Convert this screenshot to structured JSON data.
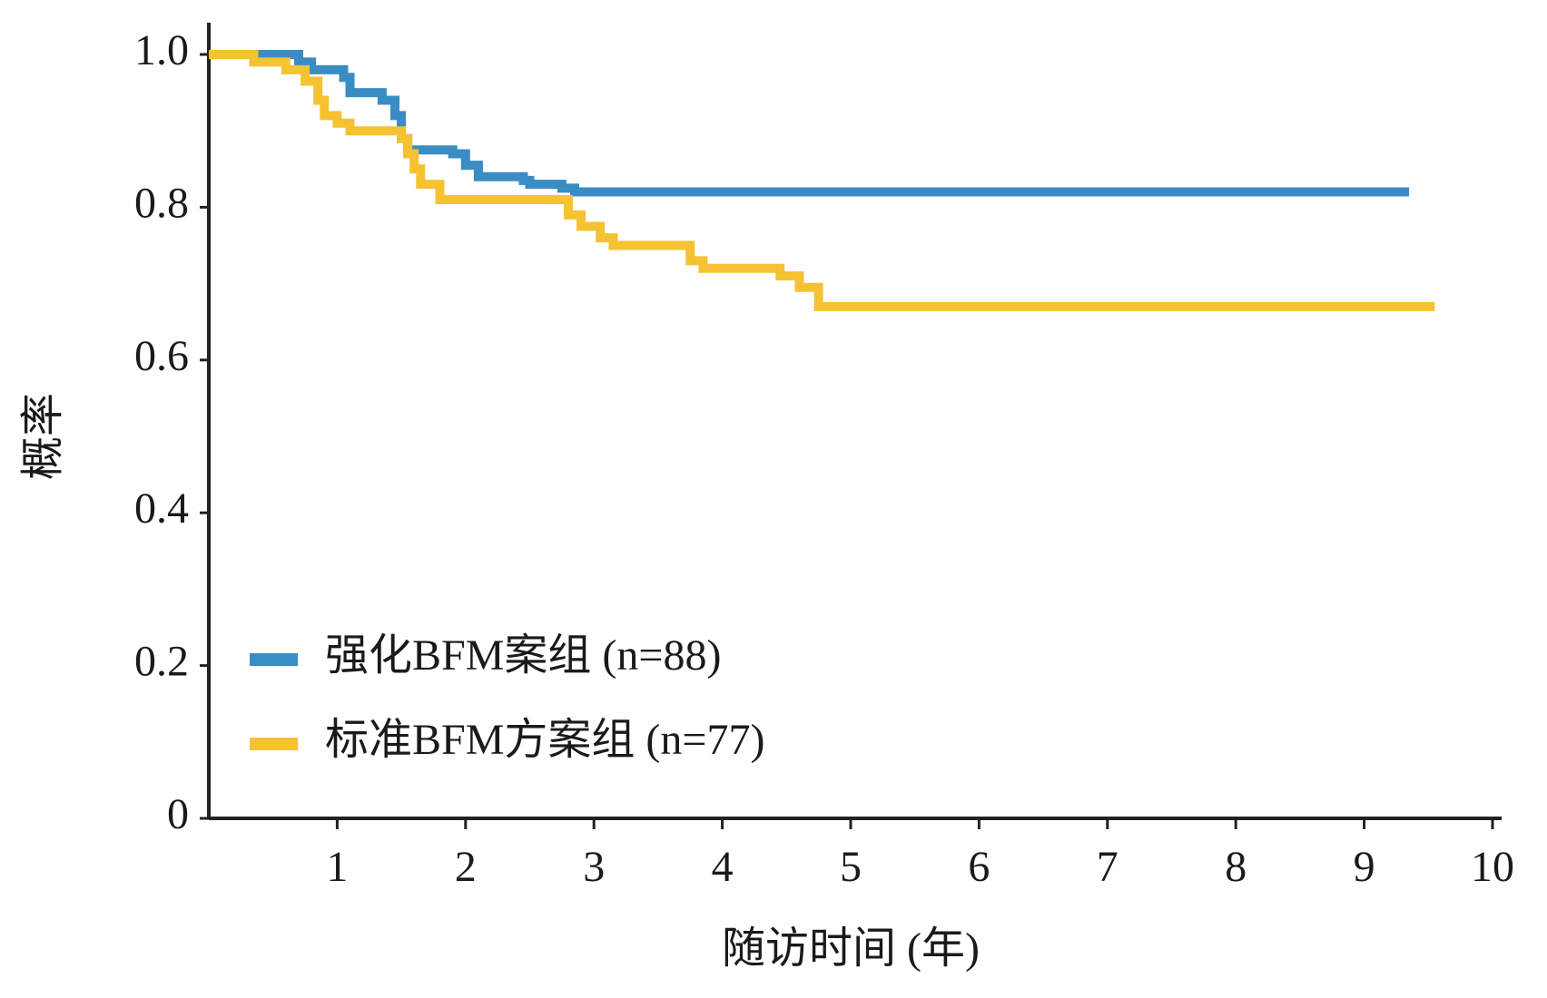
{
  "chart_data": {
    "type": "step",
    "x_label": "随访时间 (年)",
    "y_label": "概率",
    "xlim": [
      0,
      10
    ],
    "ylim": [
      0,
      1
    ],
    "xticks": [
      1,
      2,
      3,
      4,
      5,
      6,
      7,
      8,
      9,
      10
    ],
    "yticks": [
      0,
      0.2,
      0.4,
      0.6,
      0.8,
      {
        "value": 1,
        "label": "1.0"
      }
    ],
    "series": [
      {
        "name": "强化BFM案组 (n=88)",
        "color": "#3a8cc4",
        "x": [
          0,
          0.7,
          0.8,
          1.05,
          1.1,
          1.35,
          1.45,
          1.5,
          1.55,
          1.9,
          2.0,
          2.1,
          2.45,
          2.5,
          2.75,
          2.85,
          9.35
        ],
        "values": [
          1,
          0.99,
          0.98,
          0.97,
          0.95,
          0.94,
          0.92,
          0.89,
          0.875,
          0.87,
          0.855,
          0.84,
          0.835,
          0.83,
          0.825,
          0.82,
          0.82
        ]
      },
      {
        "name": "标准BFM方案组 (n=77)",
        "color": "#f5c232",
        "x": [
          0,
          0.35,
          0.6,
          0.75,
          0.85,
          0.9,
          1.0,
          1.1,
          1.5,
          1.55,
          1.6,
          1.65,
          1.8,
          2.8,
          2.9,
          3.05,
          3.15,
          3.75,
          3.85,
          4.45,
          4.6,
          4.75,
          9.55
        ],
        "values": [
          1,
          0.99,
          0.98,
          0.965,
          0.94,
          0.92,
          0.91,
          0.9,
          0.89,
          0.87,
          0.85,
          0.83,
          0.81,
          0.79,
          0.775,
          0.76,
          0.75,
          0.73,
          0.72,
          0.71,
          0.695,
          0.67,
          0.67
        ]
      }
    ]
  }
}
